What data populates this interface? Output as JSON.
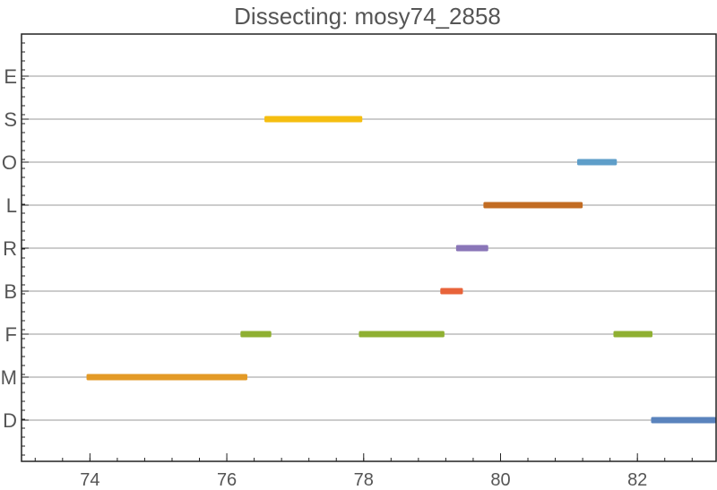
{
  "chart_data": {
    "type": "gantt",
    "title": "Dissecting: mosy74_2858",
    "xlabel": "",
    "ylabel": "",
    "xlim": [
      73.0,
      83.15
    ],
    "x_ticks": [
      74,
      76,
      78,
      80,
      82
    ],
    "categories": [
      "E",
      "S",
      "O",
      "L",
      "R",
      "B",
      "F",
      "M",
      "D"
    ],
    "grid": true,
    "segments": [
      {
        "category": "S",
        "start": 76.55,
        "end": 77.98,
        "color": "#f5be10"
      },
      {
        "category": "O",
        "start": 81.12,
        "end": 81.7,
        "color": "#5e9ec9"
      },
      {
        "category": "L",
        "start": 79.75,
        "end": 81.2,
        "color": "#c26c23"
      },
      {
        "category": "R",
        "start": 79.35,
        "end": 79.82,
        "color": "#8a76b8"
      },
      {
        "category": "B",
        "start": 79.12,
        "end": 79.45,
        "color": "#e8633a"
      },
      {
        "category": "F",
        "start": 76.2,
        "end": 76.65,
        "color": "#8fb032"
      },
      {
        "category": "F",
        "start": 77.93,
        "end": 79.18,
        "color": "#8fb032"
      },
      {
        "category": "F",
        "start": 81.65,
        "end": 82.22,
        "color": "#8fb032"
      },
      {
        "category": "M",
        "start": 73.95,
        "end": 76.3,
        "color": "#e39a26"
      },
      {
        "category": "D",
        "start": 82.2,
        "end": 83.15,
        "color": "#5a83bd"
      }
    ]
  }
}
